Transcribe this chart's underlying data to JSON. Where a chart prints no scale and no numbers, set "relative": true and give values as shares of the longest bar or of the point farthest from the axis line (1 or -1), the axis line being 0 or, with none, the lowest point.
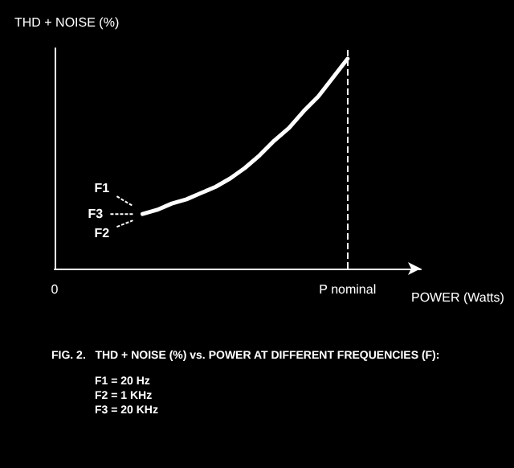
{
  "chart_data": {
    "type": "line",
    "relative": true,
    "ylabel": "THD + NOISE (%)",
    "xlabel": "POWER (Watts)",
    "categories": [
      "0",
      null,
      null,
      null,
      null,
      null,
      null,
      null,
      null,
      null,
      null,
      null,
      null,
      null,
      null,
      null,
      null,
      null,
      null,
      null,
      "P nominal",
      null,
      null,
      null,
      null,
      null
    ],
    "series": [
      {
        "color": "#ffffff",
        "values": [
          null,
          null,
          null,
          null,
          null,
          null,
          0.26,
          0.28,
          0.31,
          0.33,
          0.36,
          0.39,
          0.43,
          0.48,
          0.54,
          0.61,
          0.67,
          0.75,
          0.82,
          0.91,
          1,
          null,
          null,
          null,
          null,
          null
        ]
      }
    ],
    "ref_lines": [
      {
        "axis": "x",
        "value": "P nominal",
        "line_style": "dashed",
        "color": "#ffffff"
      }
    ],
    "annotations": [
      "F1",
      "F3",
      "F2",
      "FIG. 2.   THD + NOISE (%) vs. POWER AT DIFFERENT FREQUENCIES (F):",
      "F1 = 20 Hz",
      "F2 = 1 KHz",
      "F3 = 20 KHz"
    ],
    "grid": false,
    "marker": "none",
    "line_style": "solid"
  }
}
